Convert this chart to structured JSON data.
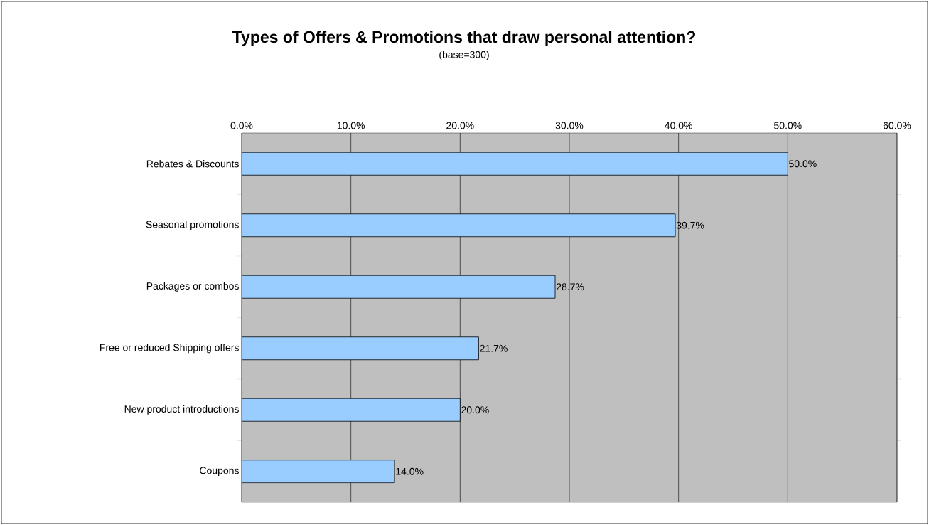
{
  "chart_data": {
    "type": "bar",
    "orientation": "horizontal",
    "title": "Types of Offers & Promotions that draw personal attention?",
    "subtitle": "(base=300)",
    "categories": [
      "Rebates & Discounts",
      "Seasonal promotions",
      "Packages or combos",
      "Free or reduced Shipping offers",
      "New product introductions",
      "Coupons"
    ],
    "values": [
      50.0,
      39.7,
      28.7,
      21.7,
      20.0,
      14.0
    ],
    "value_labels": [
      "50.0%",
      "39.7%",
      "28.7%",
      "21.7%",
      "20.0%",
      "14.0%"
    ],
    "color": "#99ccff",
    "xlim": [
      0,
      60
    ],
    "xticks": [
      {
        "value": 0,
        "label": "0.0%"
      },
      {
        "value": 10,
        "label": "10.0%"
      },
      {
        "value": 20,
        "label": "20.0%"
      },
      {
        "value": 30,
        "label": "30.0%"
      },
      {
        "value": 40,
        "label": "40.0%"
      },
      {
        "value": 50,
        "label": "50.0%"
      },
      {
        "value": 60,
        "label": "60.0%"
      }
    ],
    "grid": "x"
  }
}
